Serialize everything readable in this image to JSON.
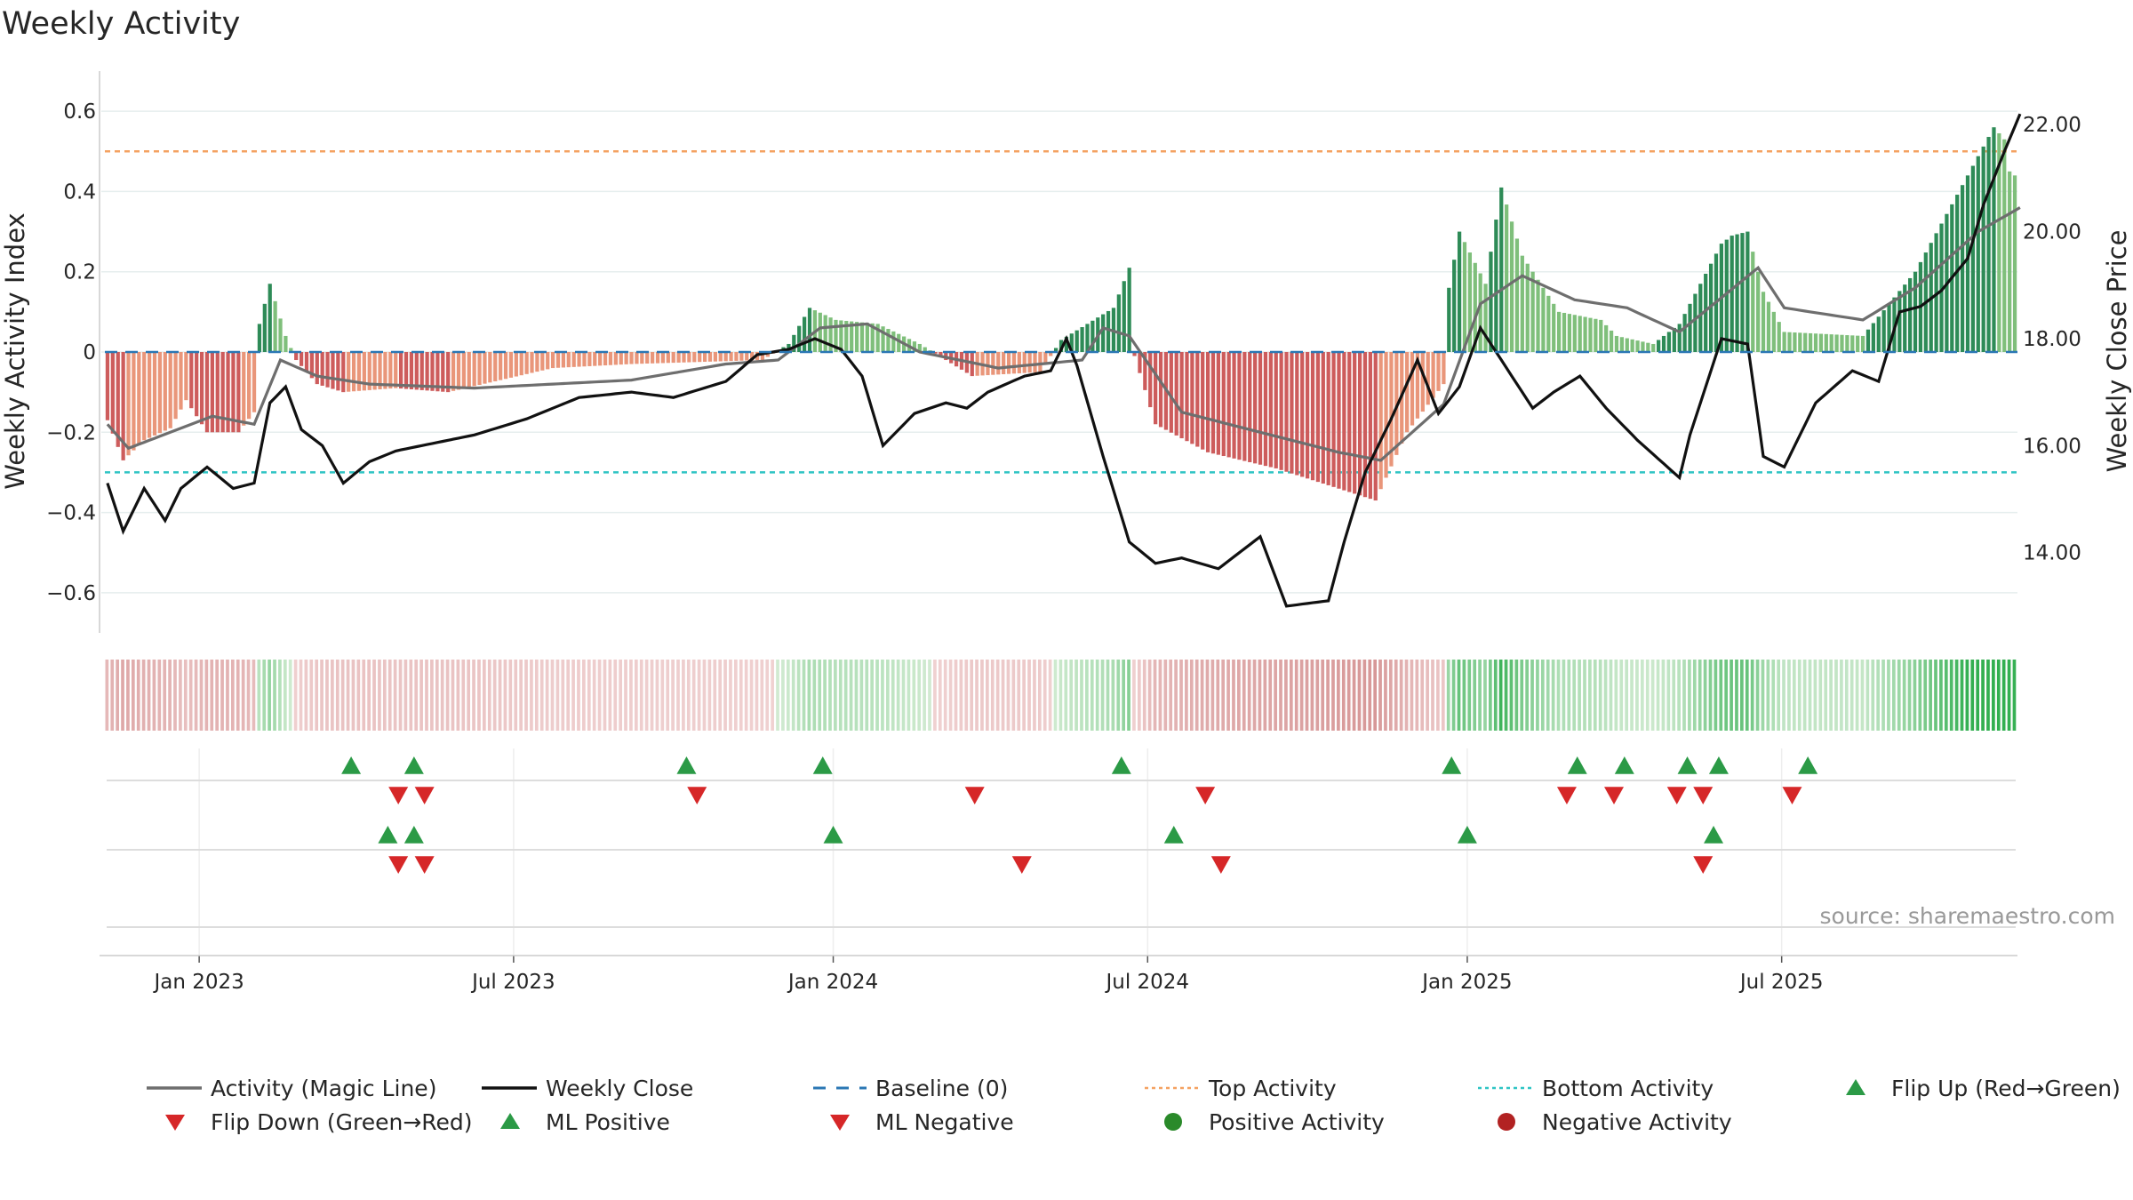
{
  "chart_data": {
    "type": "bar",
    "title": "Weekly Activity",
    "ylabel": "Weekly Activity Index",
    "y2label": "Weekly Close Price",
    "ylim": [
      -0.7,
      0.7
    ],
    "y2lim": [
      12.5,
      23.0
    ],
    "yticks": [
      -0.6,
      -0.4,
      -0.2,
      0,
      0.2,
      0.4,
      0.6
    ],
    "ytick_labels": [
      "−0.6",
      "−0.4",
      "−0.2",
      "0",
      "0.2",
      "0.4",
      "0.6"
    ],
    "y2ticks": [
      14,
      16,
      18,
      20,
      22
    ],
    "y2tick_labels": [
      "14.00",
      "16.00",
      "18.00",
      "20.00",
      "22.00"
    ],
    "xticks": [
      "Jan 2023",
      "Jul 2023",
      "Jan 2024",
      "Jul 2024",
      "Jan 2025",
      "Jul 2025"
    ],
    "xtick_weeks": [
      18,
      78,
      139,
      199,
      260,
      320
    ],
    "weeks": 365,
    "top_activity": 0.5,
    "bottom_activity": -0.3,
    "baseline": 0,
    "activity_keys": [
      [
        0,
        -0.17
      ],
      [
        3,
        -0.27
      ],
      [
        7,
        -0.22
      ],
      [
        12,
        -0.19
      ],
      [
        15,
        -0.12
      ],
      [
        19,
        -0.2
      ],
      [
        25,
        -0.2
      ],
      [
        28,
        -0.15
      ],
      [
        29,
        0.07
      ],
      [
        31,
        0.17
      ],
      [
        34,
        0.04
      ],
      [
        36,
        -0.02
      ],
      [
        40,
        -0.08
      ],
      [
        45,
        -0.1
      ],
      [
        55,
        -0.09
      ],
      [
        65,
        -0.1
      ],
      [
        75,
        -0.07
      ],
      [
        85,
        -0.04
      ],
      [
        100,
        -0.03
      ],
      [
        125,
        -0.02
      ],
      [
        130,
        0.02
      ],
      [
        134,
        0.11
      ],
      [
        139,
        0.08
      ],
      [
        147,
        0.07
      ],
      [
        155,
        0.02
      ],
      [
        165,
        -0.06
      ],
      [
        178,
        -0.05
      ],
      [
        182,
        0.03
      ],
      [
        192,
        0.11
      ],
      [
        195,
        0.21
      ],
      [
        196,
        -0.01
      ],
      [
        200,
        -0.18
      ],
      [
        210,
        -0.25
      ],
      [
        223,
        -0.29
      ],
      [
        242,
        -0.37
      ],
      [
        248,
        -0.2
      ],
      [
        255,
        -0.08
      ],
      [
        256,
        0.16
      ],
      [
        258,
        0.3
      ],
      [
        263,
        0.17
      ],
      [
        266,
        0.41
      ],
      [
        270,
        0.24
      ],
      [
        277,
        0.1
      ],
      [
        285,
        0.08
      ],
      [
        288,
        0.04
      ],
      [
        295,
        0.02
      ],
      [
        300,
        0.07
      ],
      [
        308,
        0.27
      ],
      [
        310,
        0.29
      ],
      [
        313,
        0.3
      ],
      [
        316,
        0.15
      ],
      [
        320,
        0.05
      ],
      [
        335,
        0.04
      ],
      [
        345,
        0.2
      ],
      [
        360,
        0.56
      ],
      [
        362,
        0.53
      ],
      [
        363,
        0.45
      ],
      [
        365,
        0.43
      ]
    ],
    "magic_keys": [
      [
        0,
        -0.18
      ],
      [
        4,
        -0.24
      ],
      [
        10,
        -0.21
      ],
      [
        20,
        -0.16
      ],
      [
        28,
        -0.18
      ],
      [
        33,
        -0.02
      ],
      [
        40,
        -0.06
      ],
      [
        50,
        -0.08
      ],
      [
        70,
        -0.09
      ],
      [
        100,
        -0.07
      ],
      [
        118,
        -0.03
      ],
      [
        128,
        -0.02
      ],
      [
        136,
        0.06
      ],
      [
        145,
        0.07
      ],
      [
        155,
        0.0
      ],
      [
        170,
        -0.04
      ],
      [
        186,
        -0.02
      ],
      [
        190,
        0.06
      ],
      [
        195,
        0.04
      ],
      [
        205,
        -0.15
      ],
      [
        220,
        -0.2
      ],
      [
        235,
        -0.25
      ],
      [
        243,
        -0.27
      ],
      [
        255,
        -0.13
      ],
      [
        262,
        0.12
      ],
      [
        270,
        0.19
      ],
      [
        280,
        0.13
      ],
      [
        290,
        0.11
      ],
      [
        300,
        0.05
      ],
      [
        315,
        0.21
      ],
      [
        320,
        0.11
      ],
      [
        335,
        0.08
      ],
      [
        345,
        0.16
      ],
      [
        357,
        0.3
      ],
      [
        365,
        0.36
      ]
    ],
    "close_keys": [
      [
        0,
        15.3
      ],
      [
        3,
        14.4
      ],
      [
        7,
        15.2
      ],
      [
        11,
        14.6
      ],
      [
        14,
        15.2
      ],
      [
        19,
        15.6
      ],
      [
        24,
        15.2
      ],
      [
        28,
        15.3
      ],
      [
        31,
        16.8
      ],
      [
        34,
        17.1
      ],
      [
        37,
        16.3
      ],
      [
        41,
        16.0
      ],
      [
        45,
        15.3
      ],
      [
        50,
        15.7
      ],
      [
        55,
        15.9
      ],
      [
        60,
        16.0
      ],
      [
        70,
        16.2
      ],
      [
        80,
        16.5
      ],
      [
        90,
        16.9
      ],
      [
        100,
        17.0
      ],
      [
        108,
        16.9
      ],
      [
        118,
        17.2
      ],
      [
        124,
        17.7
      ],
      [
        130,
        17.8
      ],
      [
        135,
        18.0
      ],
      [
        140,
        17.8
      ],
      [
        144,
        17.3
      ],
      [
        148,
        16.0
      ],
      [
        154,
        16.6
      ],
      [
        160,
        16.8
      ],
      [
        164,
        16.7
      ],
      [
        168,
        17.0
      ],
      [
        175,
        17.3
      ],
      [
        180,
        17.4
      ],
      [
        183,
        18.0
      ],
      [
        185,
        17.5
      ],
      [
        190,
        15.8
      ],
      [
        195,
        14.2
      ],
      [
        200,
        13.8
      ],
      [
        205,
        13.9
      ],
      [
        212,
        13.7
      ],
      [
        220,
        14.3
      ],
      [
        225,
        13.0
      ],
      [
        233,
        13.1
      ],
      [
        236,
        14.2
      ],
      [
        240,
        15.5
      ],
      [
        245,
        16.5
      ],
      [
        250,
        17.6
      ],
      [
        254,
        16.6
      ],
      [
        258,
        17.1
      ],
      [
        262,
        18.2
      ],
      [
        266,
        17.6
      ],
      [
        272,
        16.7
      ],
      [
        276,
        17.0
      ],
      [
        281,
        17.3
      ],
      [
        286,
        16.7
      ],
      [
        292,
        16.1
      ],
      [
        300,
        15.4
      ],
      [
        302,
        16.2
      ],
      [
        308,
        18.0
      ],
      [
        313,
        17.9
      ],
      [
        316,
        15.8
      ],
      [
        320,
        15.6
      ],
      [
        326,
        16.8
      ],
      [
        333,
        17.4
      ],
      [
        338,
        17.2
      ],
      [
        342,
        18.5
      ],
      [
        346,
        18.6
      ],
      [
        350,
        18.9
      ],
      [
        355,
        19.5
      ],
      [
        358,
        20.5
      ],
      [
        362,
        21.5
      ],
      [
        365,
        22.2
      ]
    ],
    "flip_up_weeks": [
      47,
      59,
      111,
      137,
      194,
      257,
      281,
      290,
      302,
      308,
      325
    ],
    "flip_down_weeks": [
      56,
      61,
      113,
      166,
      210,
      279,
      288,
      300,
      305,
      322
    ],
    "ml_positive_weeks": [
      54,
      59,
      139,
      204,
      260,
      307
    ],
    "ml_negative_weeks": [
      56,
      61,
      175,
      213,
      305
    ],
    "source": "source: sharemaestro.com",
    "legend": [
      {
        "label": "Activity (Magic Line)",
        "kind": "line",
        "color": "#6e6e6e"
      },
      {
        "label": "Weekly Close",
        "kind": "line",
        "color": "#111111"
      },
      {
        "label": "Baseline (0)",
        "kind": "dash",
        "color": "#2a77b4"
      },
      {
        "label": "Top Activity",
        "kind": "dot",
        "color": "#f4a261"
      },
      {
        "label": "Bottom Activity",
        "kind": "dot",
        "color": "#2ec4c4"
      },
      {
        "label": "Flip Up (Red→Green)",
        "kind": "up",
        "color": "#2b9a46"
      },
      {
        "label": "Flip Down (Green→Red)",
        "kind": "down",
        "color": "#d62728"
      },
      {
        "label": "ML Positive",
        "kind": "up",
        "color": "#2b9a46"
      },
      {
        "label": "ML Negative",
        "kind": "down",
        "color": "#d62728"
      },
      {
        "label": "Positive Activity",
        "kind": "circle",
        "color": "#2a8a2a"
      },
      {
        "label": "Negative Activity",
        "kind": "circle",
        "color": "#b22222"
      }
    ],
    "colors": {
      "pos_strong": "#2e8b57",
      "pos_weak": "#7fbf7b",
      "neg_strong": "#cd5c5c",
      "neg_weak": "#e9967a",
      "magic": "#6e6e6e",
      "close": "#111111",
      "top": "#f4a261",
      "bottom": "#2ec4c4",
      "baseline": "#2a77b4"
    }
  }
}
